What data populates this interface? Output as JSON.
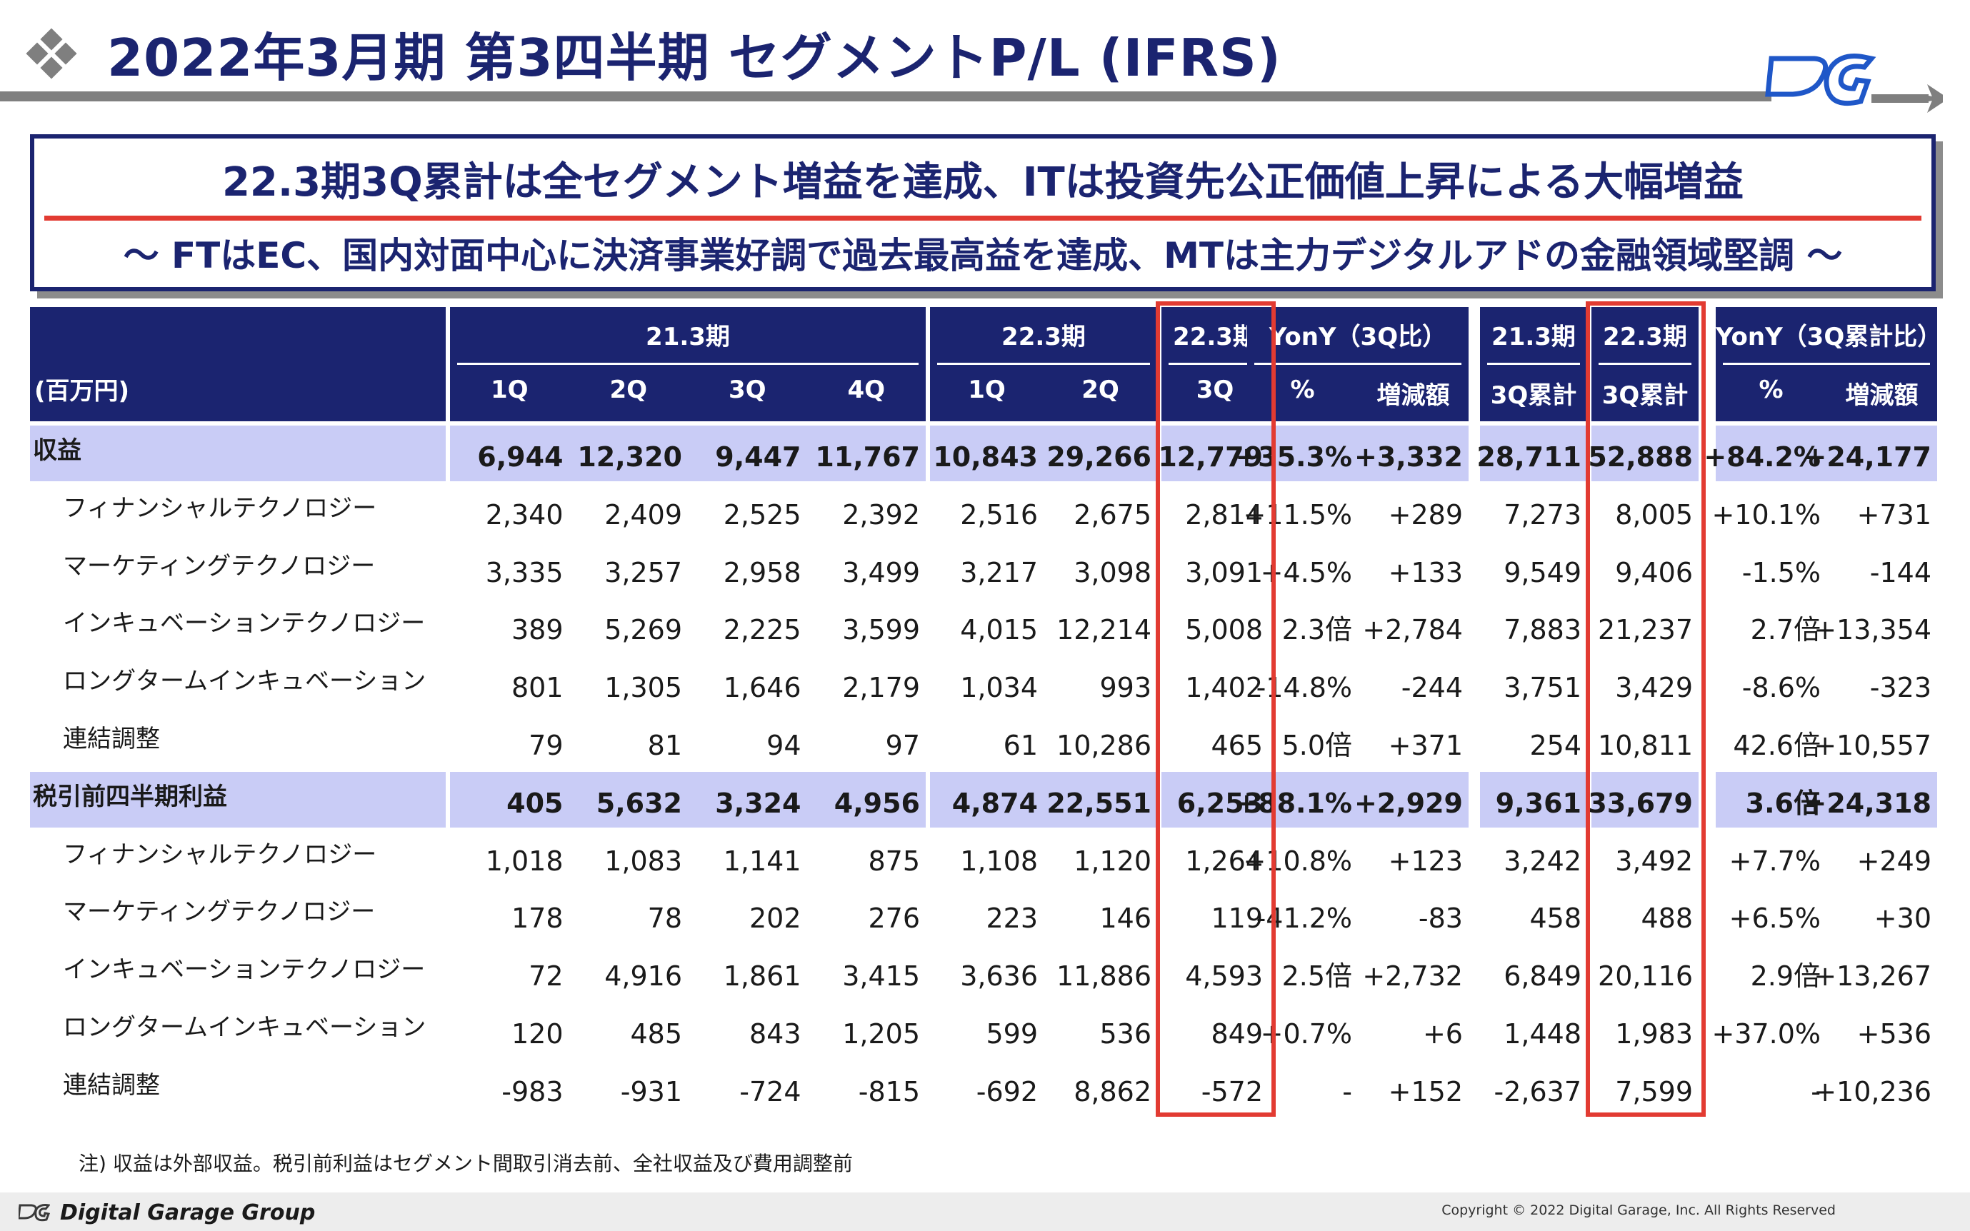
{
  "title": "2022年3月期 第3四半期 セグメントP/L (IFRS)",
  "headline": {
    "main": "22.3期3Q累計は全セグメント増益を達成、ITは投資先公正価値上昇による大幅増益",
    "sub": "～ FTはEC、国内対面中心に決済事業好調で過去最高益を達成、MTは主力デジタルアドの金融領域堅調 ～"
  },
  "table": {
    "unit_label": "(百万円)",
    "group_headers": [
      "21.3期",
      "22.3期",
      "22.3期",
      "YonY（3Q比）",
      "21.3期",
      "22.3期",
      "YonY（3Q累計比）"
    ],
    "sub_headers": [
      "1Q",
      "2Q",
      "3Q",
      "4Q",
      "1Q",
      "2Q",
      "3Q",
      "%",
      "増減額",
      "3Q累計",
      "3Q累計",
      "%",
      "増減額"
    ],
    "rows": [
      {
        "label": "収益",
        "bold": true,
        "summary": true,
        "values": [
          "6,944",
          "12,320",
          "9,447",
          "11,767",
          "10,843",
          "29,266",
          "12,779",
          "+35.3%",
          "+3,332",
          "28,711",
          "52,888",
          "+84.2%",
          "+24,177"
        ]
      },
      {
        "label": "フィナンシャルテクノロジー",
        "bold": false,
        "summary": false,
        "values": [
          "2,340",
          "2,409",
          "2,525",
          "2,392",
          "2,516",
          "2,675",
          "2,814",
          "+11.5%",
          "+289",
          "7,273",
          "8,005",
          "+10.1%",
          "+731"
        ]
      },
      {
        "label": "マーケティングテクノロジー",
        "bold": false,
        "summary": false,
        "values": [
          "3,335",
          "3,257",
          "2,958",
          "3,499",
          "3,217",
          "3,098",
          "3,091",
          "+4.5%",
          "+133",
          "9,549",
          "9,406",
          "-1.5%",
          "-144"
        ]
      },
      {
        "label": "インキュベーションテクノロジー",
        "bold": false,
        "summary": false,
        "values": [
          "389",
          "5,269",
          "2,225",
          "3,599",
          "4,015",
          "12,214",
          "5,008",
          "2.3倍",
          "+2,784",
          "7,883",
          "21,237",
          "2.7倍",
          "+13,354"
        ]
      },
      {
        "label": "ロングタームインキュベーション",
        "bold": false,
        "summary": false,
        "values": [
          "801",
          "1,305",
          "1,646",
          "2,179",
          "1,034",
          "993",
          "1,402",
          "-14.8%",
          "-244",
          "3,751",
          "3,429",
          "-8.6%",
          "-323"
        ]
      },
      {
        "label": "連結調整",
        "bold": false,
        "summary": false,
        "values": [
          "79",
          "81",
          "94",
          "97",
          "61",
          "10,286",
          "465",
          "5.0倍",
          "+371",
          "254",
          "10,811",
          "42.6倍",
          "+10,557"
        ]
      },
      {
        "label": "税引前四半期利益",
        "bold": true,
        "summary": true,
        "values": [
          "405",
          "5,632",
          "3,324",
          "4,956",
          "4,874",
          "22,551",
          "6,253",
          "+88.1%",
          "+2,929",
          "9,361",
          "33,679",
          "3.6倍",
          "+24,318"
        ]
      },
      {
        "label": "フィナンシャルテクノロジー",
        "bold": false,
        "summary": false,
        "values": [
          "1,018",
          "1,083",
          "1,141",
          "875",
          "1,108",
          "1,120",
          "1,264",
          "+10.8%",
          "+123",
          "3,242",
          "3,492",
          "+7.7%",
          "+249"
        ]
      },
      {
        "label": "マーケティングテクノロジー",
        "bold": false,
        "summary": false,
        "values": [
          "178",
          "78",
          "202",
          "276",
          "223",
          "146",
          "119",
          "-41.2%",
          "-83",
          "458",
          "488",
          "+6.5%",
          "+30"
        ]
      },
      {
        "label": "インキュベーションテクノロジー",
        "bold": false,
        "summary": false,
        "values": [
          "72",
          "4,916",
          "1,861",
          "3,415",
          "3,636",
          "11,886",
          "4,593",
          "2.5倍",
          "+2,732",
          "6,849",
          "20,116",
          "2.9倍",
          "+13,267"
        ]
      },
      {
        "label": "ロングタームインキュベーション",
        "bold": false,
        "summary": false,
        "values": [
          "120",
          "485",
          "843",
          "1,205",
          "599",
          "536",
          "849",
          "+0.7%",
          "+6",
          "1,448",
          "1,983",
          "+37.0%",
          "+536"
        ]
      },
      {
        "label": "連結調整",
        "bold": false,
        "summary": false,
        "values": [
          "-983",
          "-931",
          "-724",
          "-815",
          "-692",
          "8,862",
          "-572",
          "-",
          "+152",
          "-2,637",
          "7,599",
          "-",
          "+10,236"
        ]
      }
    ]
  },
  "note": "注) 収益は外部収益。税引前利益はセグメント間取引消去前、全社収益及び費用調整前",
  "footer": {
    "brand": "Digital Garage Group",
    "copyright": "Copyright © 2022 Digital Garage, Inc. All Rights Reserved"
  },
  "colors": {
    "navy": "#1b2470",
    "highlight_red": "#e23b32",
    "summary_row": "#c9ccf6",
    "rule_gray": "#7f7f7f"
  }
}
